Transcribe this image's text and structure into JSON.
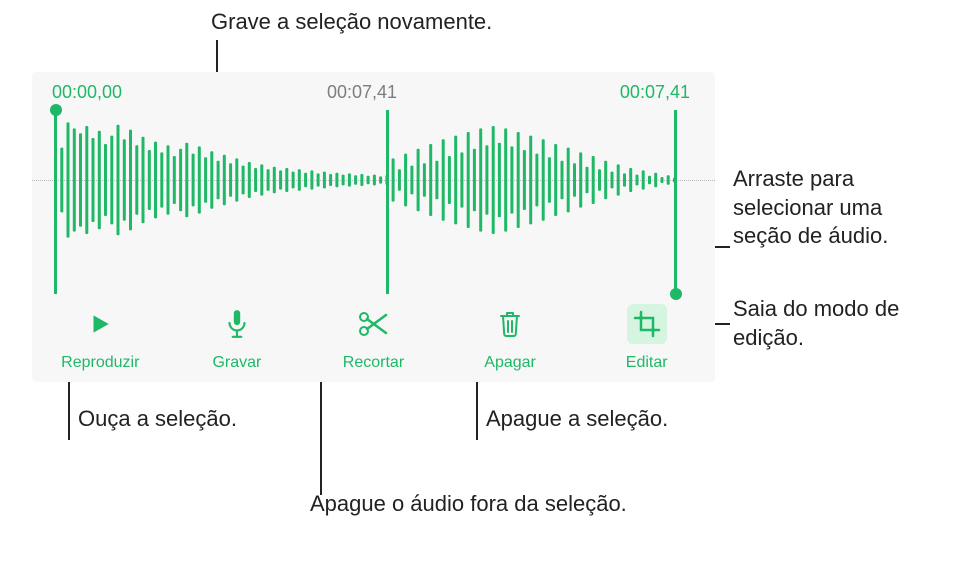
{
  "accent": "#1fb866",
  "panel_bg": "#f7f7f8",
  "muted": "#7d7d82",
  "times": {
    "start": "00:00,00",
    "position": "00:07,41",
    "end": "00:07,41"
  },
  "toolbar": {
    "play": {
      "label": "Reproduzir"
    },
    "record": {
      "label": "Gravar"
    },
    "trim": {
      "label": "Recortar"
    },
    "delete": {
      "label": "Apagar"
    },
    "edit": {
      "label": "Editar"
    }
  },
  "callouts": {
    "top": "Grave a seleção novamente.",
    "drag": "Arraste para selecionar uma seção de áudio.",
    "exit_edit": "Saia do modo de edição.",
    "play_listen": "Ouça a seleção.",
    "delete_sel": "Apague a seleção.",
    "trim_outside": "Apague o áudio fora da seleção."
  },
  "waveform": {
    "bar_color_main": "#1fb866",
    "bar_color_sel": "#1fb866",
    "bar_count": 100,
    "amplitudes": [
      0.88,
      0.54,
      0.96,
      0.86,
      0.78,
      0.9,
      0.7,
      0.82,
      0.6,
      0.74,
      0.92,
      0.68,
      0.84,
      0.58,
      0.72,
      0.5,
      0.64,
      0.46,
      0.58,
      0.4,
      0.52,
      0.62,
      0.44,
      0.56,
      0.38,
      0.48,
      0.32,
      0.42,
      0.28,
      0.36,
      0.24,
      0.3,
      0.2,
      0.26,
      0.18,
      0.22,
      0.16,
      0.2,
      0.14,
      0.18,
      0.12,
      0.16,
      0.11,
      0.14,
      0.1,
      0.12,
      0.09,
      0.11,
      0.08,
      0.1,
      0.07,
      0.09,
      0.06,
      0.08,
      0.36,
      0.18,
      0.44,
      0.24,
      0.52,
      0.28,
      0.6,
      0.32,
      0.68,
      0.4,
      0.74,
      0.46,
      0.8,
      0.52,
      0.86,
      0.58,
      0.9,
      0.62,
      0.86,
      0.56,
      0.8,
      0.5,
      0.74,
      0.44,
      0.68,
      0.38,
      0.6,
      0.32,
      0.54,
      0.28,
      0.46,
      0.22,
      0.4,
      0.18,
      0.32,
      0.14,
      0.26,
      0.11,
      0.2,
      0.09,
      0.16,
      0.07,
      0.12,
      0.05,
      0.08,
      0.04
    ]
  }
}
